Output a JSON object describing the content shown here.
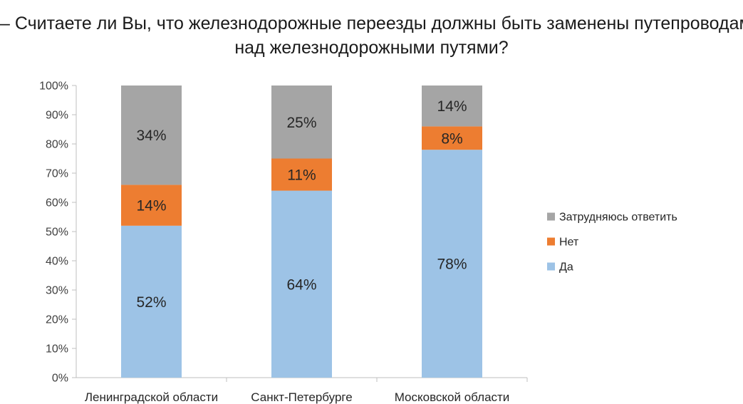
{
  "title": {
    "line1": "– Считаете ли Вы, что железнодорожные переезды должны быть заменены путепроводами",
    "line2": "над железнодорожными путями?"
  },
  "chart_data": {
    "type": "bar",
    "stacked": true,
    "percent": true,
    "title": "– Считаете ли Вы, что железнодорожные переезды должны быть заменены путепроводами над железнодорожными путями?",
    "categories": [
      "Ленинградской области",
      "Санкт-Петербурге",
      "Московской области"
    ],
    "series": [
      {
        "name": "Да",
        "values": [
          52,
          64,
          78
        ],
        "labels": [
          "52%",
          "64%",
          "78%"
        ],
        "color": "#9dc3e6"
      },
      {
        "name": "Нет",
        "values": [
          14,
          11,
          8
        ],
        "labels": [
          "14%",
          "11%",
          "8%"
        ],
        "color": "#ed7d31"
      },
      {
        "name": "Затрудняюсь ответить",
        "values": [
          34,
          25,
          14
        ],
        "labels": [
          "34%",
          "25%",
          "14%"
        ],
        "color": "#a5a5a5"
      }
    ],
    "ylim": [
      0,
      100
    ],
    "yticks": [
      "0%",
      "10%",
      "20%",
      "30%",
      "40%",
      "50%",
      "60%",
      "70%",
      "80%",
      "90%",
      "100%"
    ],
    "grid": false,
    "legend": {
      "position": "right",
      "order": [
        "Затрудняюсь ответить",
        "Нет",
        "Да"
      ]
    }
  }
}
